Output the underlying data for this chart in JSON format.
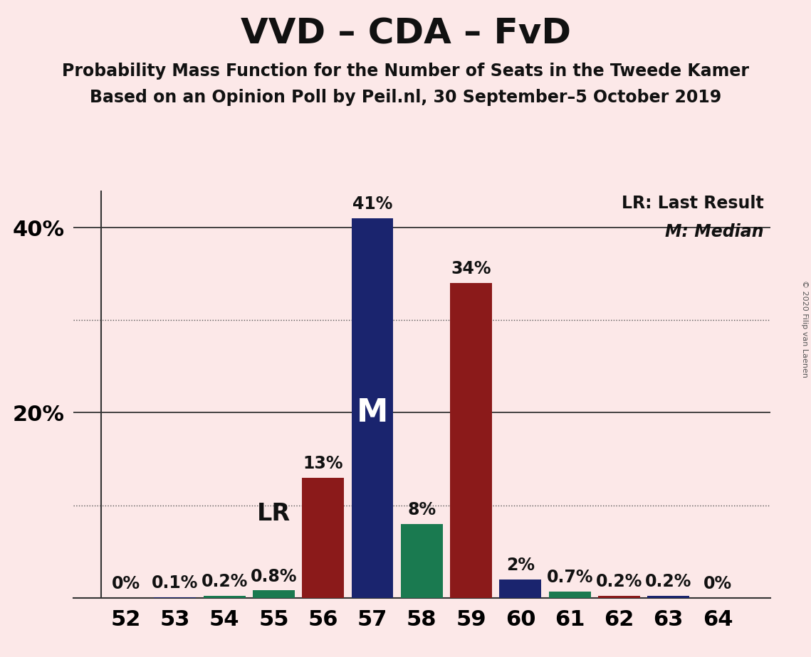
{
  "title": "VVD – CDA – FvD",
  "subtitle1": "Probability Mass Function for the Number of Seats in the Tweede Kamer",
  "subtitle2": "Based on an Opinion Poll by Peil.nl, 30 September–5 October 2019",
  "copyright": "© 2020 Filip van Laenen",
  "legend_lr": "LR: Last Result",
  "legend_m": "M: Median",
  "categories": [
    52,
    53,
    54,
    55,
    56,
    57,
    58,
    59,
    60,
    61,
    62,
    63,
    64
  ],
  "values": [
    0.0,
    0.1,
    0.2,
    0.8,
    13.0,
    41.0,
    8.0,
    34.0,
    2.0,
    0.7,
    0.2,
    0.2,
    0.0
  ],
  "color_map": {
    "52": "#8B1a1a",
    "53": "#1a246e",
    "54": "#1a7a50",
    "55": "#1a7a50",
    "56": "#8B1a1a",
    "57": "#1a246e",
    "58": "#1a7a50",
    "59": "#8B1a1a",
    "60": "#1a246e",
    "61": "#1a7a50",
    "62": "#8B1a1a",
    "63": "#1a246e",
    "64": "#8B1a1a"
  },
  "median_bar_cat": 57,
  "lr_bar_cat": 55,
  "background_color": "#fce8e8",
  "ylim": [
    0,
    44
  ],
  "ytick_positions": [
    20,
    40
  ],
  "ytick_labels": [
    "20%",
    "40%"
  ],
  "solid_grid_at": [
    20,
    40
  ],
  "dotted_grid_at": [
    10,
    30
  ],
  "title_fontsize": 36,
  "subtitle_fontsize": 17,
  "bar_label_fontsize": 17,
  "axis_label_fontsize": 22,
  "legend_fontsize": 17,
  "lr_label_fontsize": 24,
  "m_label_fontsize": 32
}
